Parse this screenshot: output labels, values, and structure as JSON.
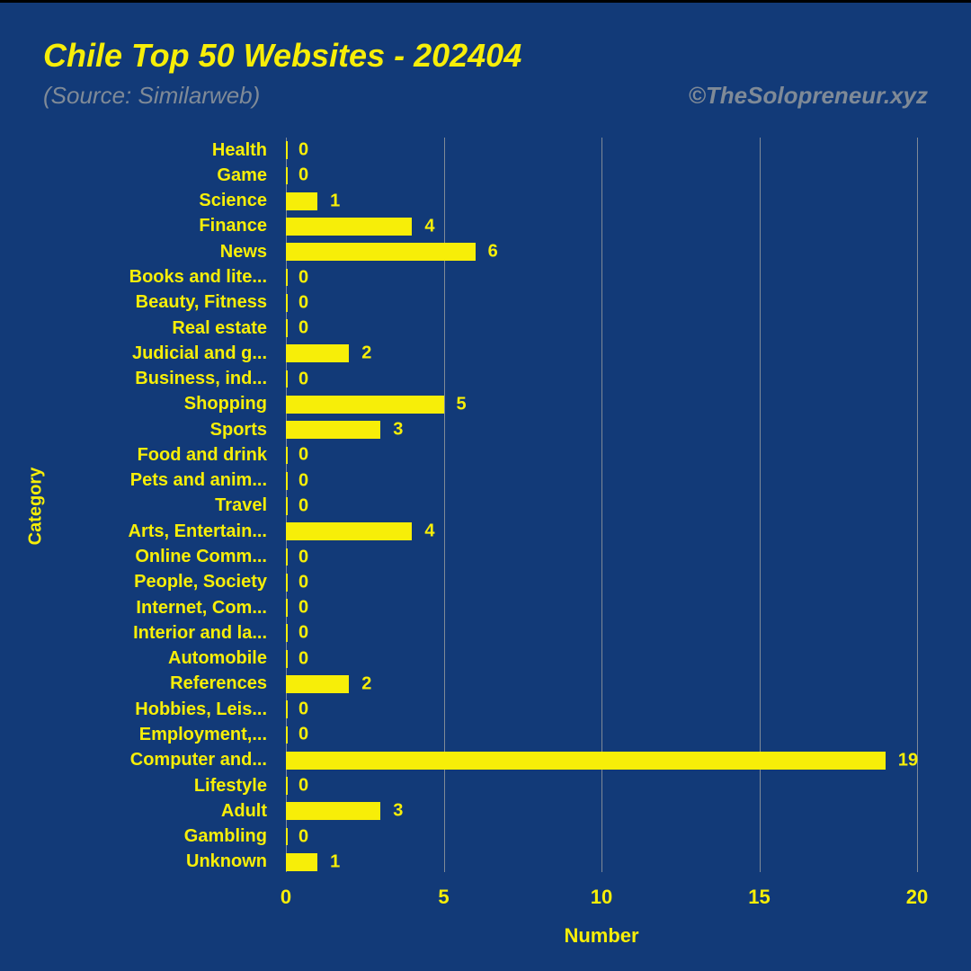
{
  "chart": {
    "type": "horizontal-bar",
    "title": "Chile Top 50 Websites - 202404",
    "source": "(Source: Similarweb)",
    "credit": "©TheSolopreneur.xyz",
    "background_color": "#123a78",
    "bar_color": "#f7ee08",
    "text_color": "#f7ee08",
    "muted_color": "#7f8a97",
    "x_axis_label": "Number",
    "y_axis_label": "Category",
    "x_ticks": [
      0,
      5,
      10,
      15,
      20
    ],
    "x_max": 20,
    "title_fontsize": 36,
    "subtitle_fontsize": 26,
    "label_fontsize": 20,
    "categories": [
      {
        "label": "Health",
        "value": 0
      },
      {
        "label": "Game",
        "value": 0
      },
      {
        "label": "Science",
        "value": 1
      },
      {
        "label": "Finance",
        "value": 4
      },
      {
        "label": "News",
        "value": 6
      },
      {
        "label": "Books and lite...",
        "value": 0
      },
      {
        "label": "Beauty, Fitness",
        "value": 0
      },
      {
        "label": "Real estate",
        "value": 0
      },
      {
        "label": "Judicial and g...",
        "value": 2
      },
      {
        "label": "Business, ind...",
        "value": 0
      },
      {
        "label": "Shopping",
        "value": 5
      },
      {
        "label": "Sports",
        "value": 3
      },
      {
        "label": "Food and drink",
        "value": 0
      },
      {
        "label": "Pets and anim...",
        "value": 0
      },
      {
        "label": "Travel",
        "value": 0
      },
      {
        "label": "Arts, Entertain...",
        "value": 4
      },
      {
        "label": "Online Comm...",
        "value": 0
      },
      {
        "label": "People, Society",
        "value": 0
      },
      {
        "label": "Internet, Com...",
        "value": 0
      },
      {
        "label": "Interior and la...",
        "value": 0
      },
      {
        "label": "Automobile",
        "value": 0
      },
      {
        "label": "References",
        "value": 2
      },
      {
        "label": "Hobbies, Leis...",
        "value": 0
      },
      {
        "label": "Employment,...",
        "value": 0
      },
      {
        "label": "Computer and...",
        "value": 19
      },
      {
        "label": "Lifestyle",
        "value": 0
      },
      {
        "label": "Adult",
        "value": 3
      },
      {
        "label": "Gambling",
        "value": 0
      },
      {
        "label": "Unknown",
        "value": 1
      }
    ]
  }
}
